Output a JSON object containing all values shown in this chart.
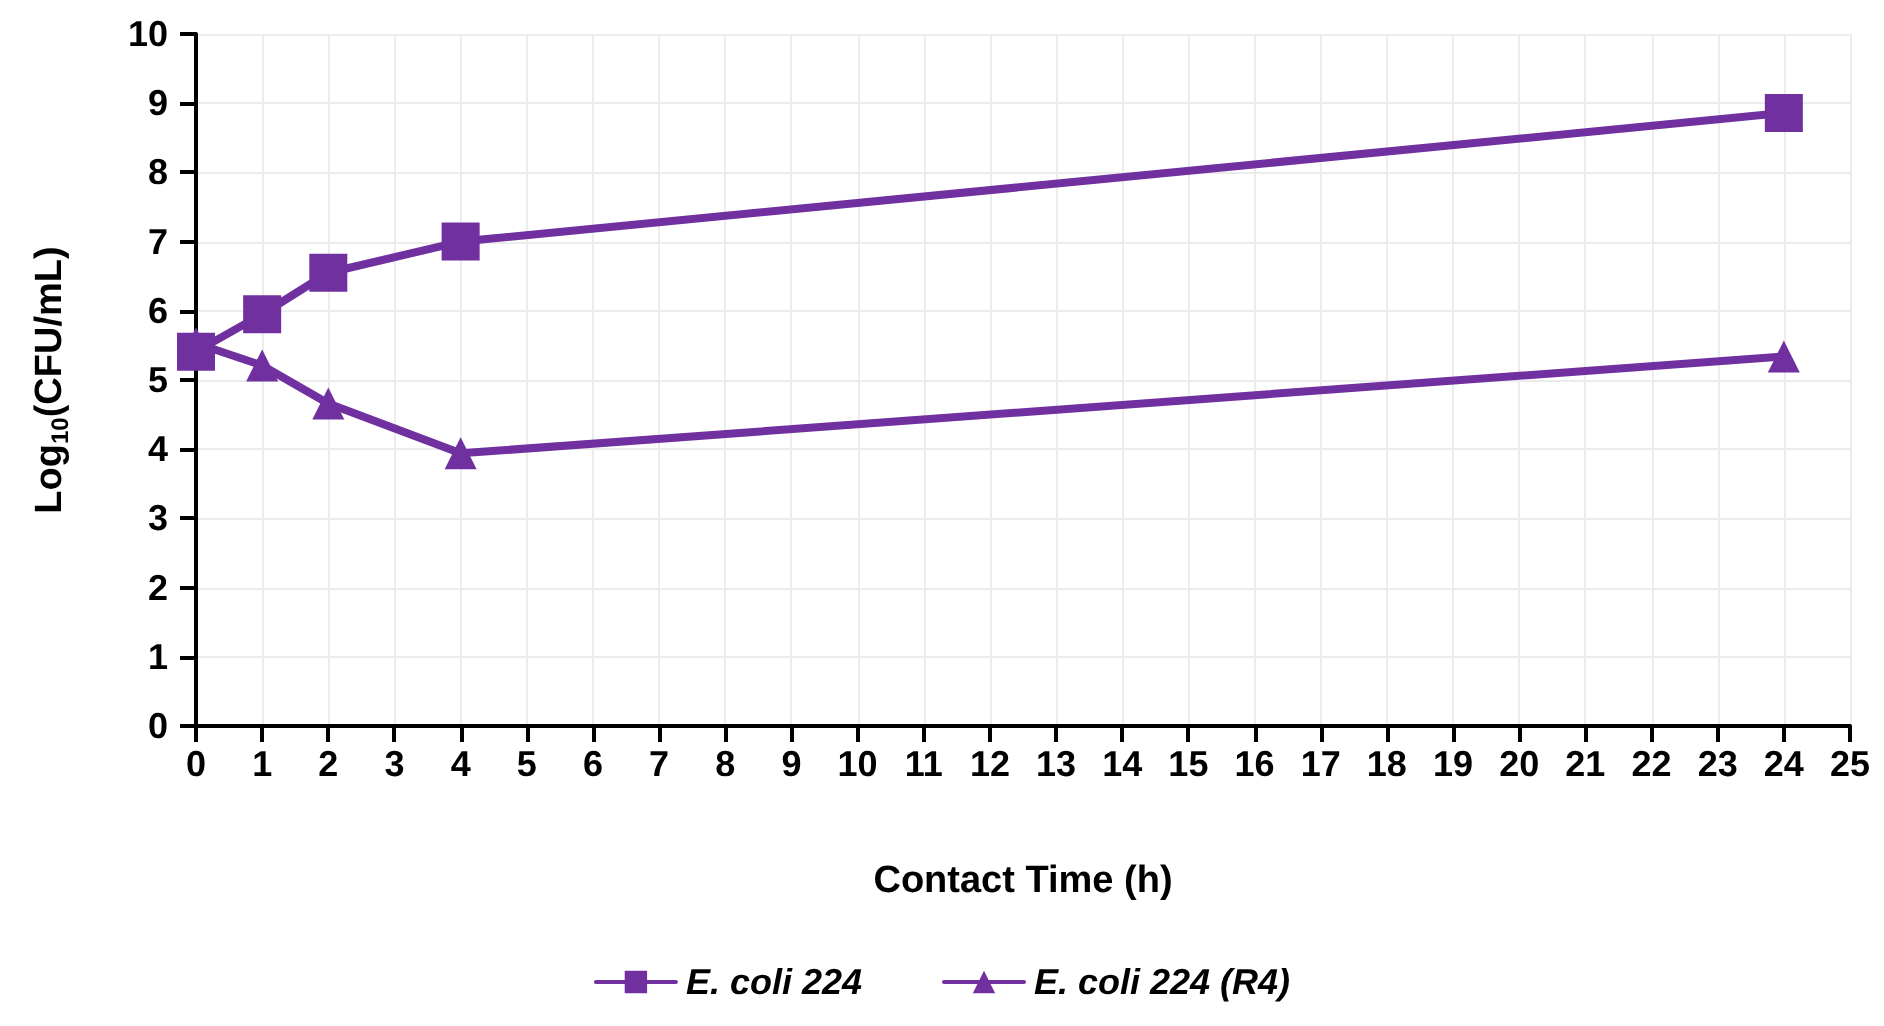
{
  "chart_data": {
    "type": "line",
    "xlabel": "Contact Time (h)",
    "ylabel": "Log$_{10}$(CFU/mL)",
    "x": [
      0,
      1,
      2,
      4,
      24
    ],
    "series": [
      {
        "name": "E. coli 224",
        "color": "#7030a0",
        "values": [
          5.41,
          5.95,
          6.55,
          7.0,
          8.86
        ],
        "marker": "square"
      },
      {
        "name": "E. coli 224 (R4)",
        "color": "#7030a0",
        "values": [
          5.53,
          5.21,
          4.66,
          3.94,
          5.34
        ],
        "marker": "triangle"
      }
    ],
    "xlim": [
      0,
      25
    ],
    "xticks": [
      0,
      1,
      2,
      3,
      4,
      5,
      6,
      7,
      8,
      9,
      10,
      11,
      12,
      13,
      14,
      15,
      16,
      17,
      18,
      19,
      20,
      21,
      22,
      23,
      24,
      25
    ],
    "ylim": [
      0,
      10
    ],
    "yticks": [
      0,
      1,
      2,
      3,
      4,
      5,
      6,
      7,
      8,
      9,
      10
    ],
    "grid": true,
    "legend": "bottom",
    "line_style": "solid"
  }
}
